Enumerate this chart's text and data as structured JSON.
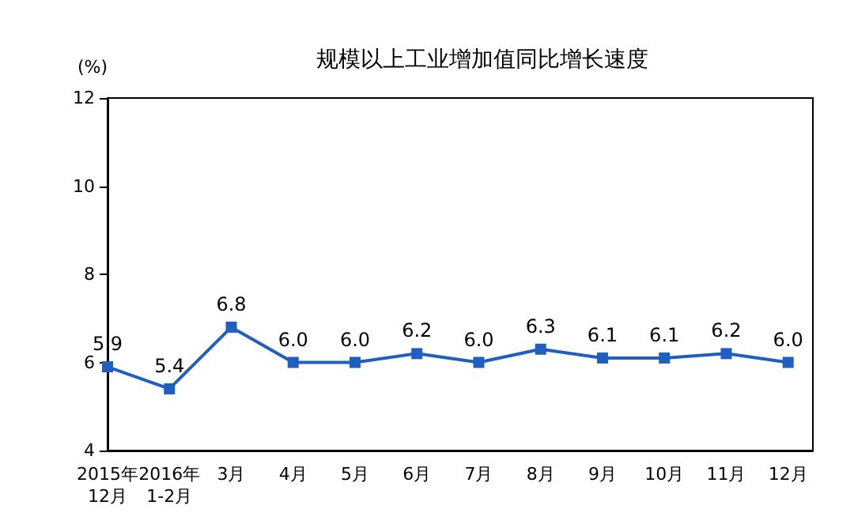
{
  "chart_data": {
    "type": "line",
    "title": "规模以上工业增加值同比增长速度",
    "ylabel": "(%)",
    "categories": [
      "2015年\n12月",
      "2016年\n1-2月",
      "3月",
      "4月",
      "5月",
      "6月",
      "7月",
      "8月",
      "9月",
      "10月",
      "11月",
      "12月"
    ],
    "series": [
      {
        "color": "#1f5fbf",
        "values": [
          5.9,
          5.4,
          6.8,
          6.0,
          6.0,
          6.2,
          6.0,
          6.3,
          6.1,
          6.1,
          6.2,
          6.0
        ],
        "value_labels": [
          "5.9",
          "5.4",
          "6.8",
          "6.0",
          "6.0",
          "6.2",
          "6.0",
          "6.3",
          "6.1",
          "6.1",
          "6.2",
          "6.0"
        ]
      }
    ],
    "ylim": [
      4,
      12
    ],
    "yticks": [
      4,
      6,
      8,
      10,
      12
    ],
    "grid": false,
    "marker": "square",
    "line_style": "solid"
  }
}
